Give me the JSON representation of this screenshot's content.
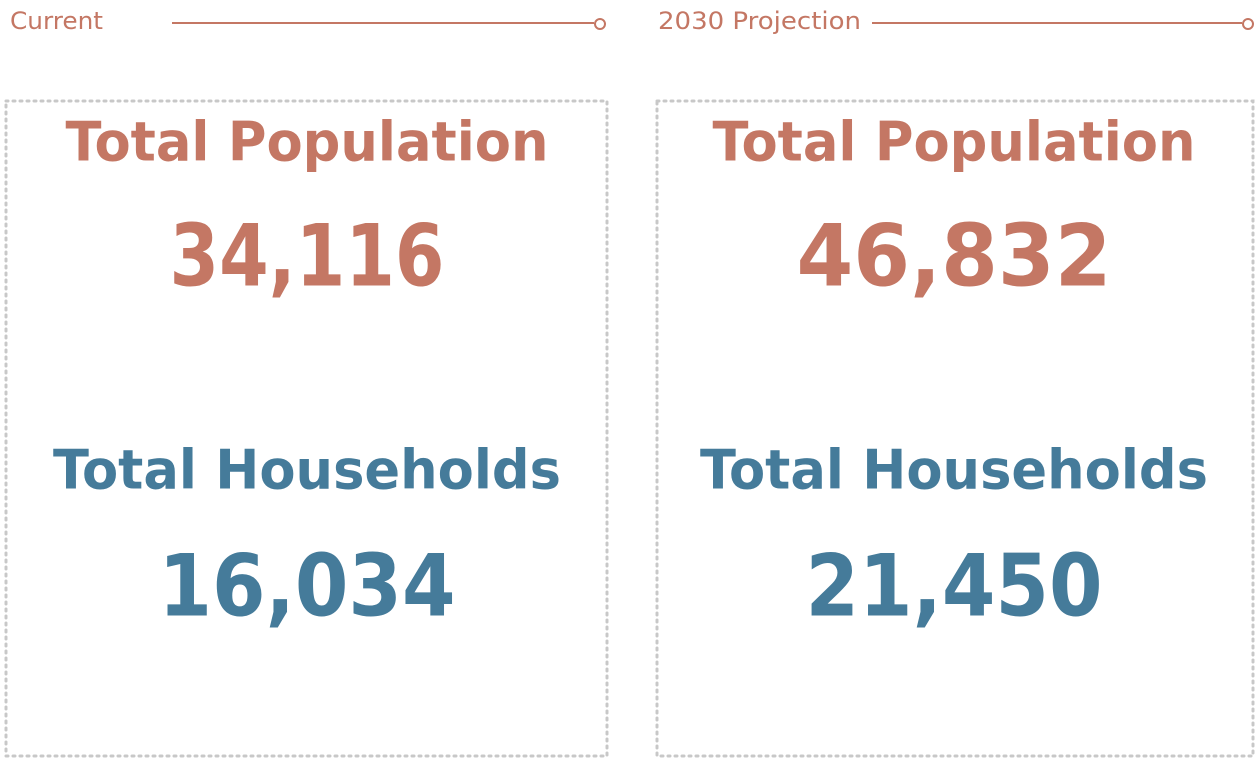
{
  "panels": [
    {
      "heading": "Current",
      "stats": [
        {
          "label": "Total Population",
          "value": "34,116"
        },
        {
          "label": "Total Households",
          "value": "16,034"
        }
      ]
    },
    {
      "heading": "2030 Projection",
      "stats": [
        {
          "label": "Total Population",
          "value": "46,832"
        },
        {
          "label": "Total Households",
          "value": "21,450"
        }
      ]
    }
  ]
}
